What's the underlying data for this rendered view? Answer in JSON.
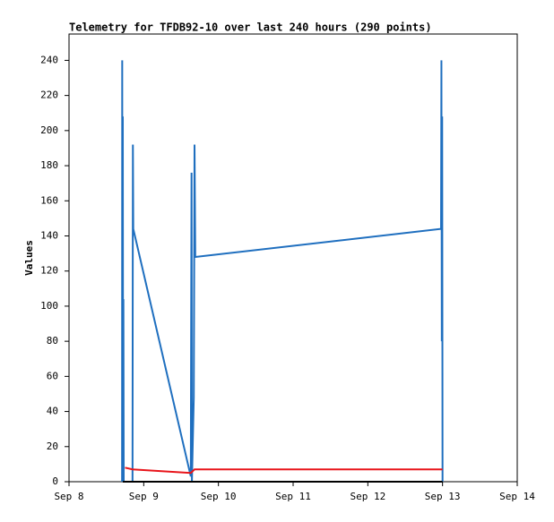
{
  "chart_data": {
    "type": "line",
    "title": "Telemetry for TFDB92-10 over last 240 hours (290 points)",
    "y_label": "Values",
    "xlim": [
      8,
      14
    ],
    "xticks": [
      {
        "value": 8,
        "label": "Sep 8"
      },
      {
        "value": 9,
        "label": "Sep 9"
      },
      {
        "value": 10,
        "label": "Sep 10"
      },
      {
        "value": 11,
        "label": "Sep 11"
      },
      {
        "value": 12,
        "label": "Sep 12"
      },
      {
        "value": 13,
        "label": "Sep 13"
      },
      {
        "value": 14,
        "label": "Sep 14"
      }
    ],
    "ylim": [
      0,
      255
    ],
    "yticks": [
      0,
      20,
      40,
      60,
      80,
      100,
      120,
      140,
      160,
      180,
      200,
      220,
      240
    ],
    "series": [
      {
        "color": "#1f6fbf",
        "x": [
          8.71,
          8.712,
          8.716,
          8.72,
          8.724,
          8.728,
          8.732,
          8.85,
          8.855,
          8.86,
          9.63,
          9.64,
          9.645,
          9.67,
          9.68,
          9.69,
          12.98,
          12.985,
          12.99,
          12.995,
          13.0
        ],
        "values": [
          0,
          240,
          0,
          208,
          0,
          104,
          0,
          0,
          192,
          144,
          3,
          176,
          0,
          48,
          192,
          128,
          144,
          240,
          80,
          208,
          0
        ]
      },
      {
        "color": "#e8141a",
        "x": [
          8.75,
          8.85,
          9.63,
          9.68,
          13.0
        ],
        "values": [
          8,
          7,
          5,
          7,
          7
        ]
      },
      {
        "color": "#000000",
        "x": [
          8.72,
          13.0
        ],
        "values": [
          0,
          0
        ]
      }
    ]
  }
}
